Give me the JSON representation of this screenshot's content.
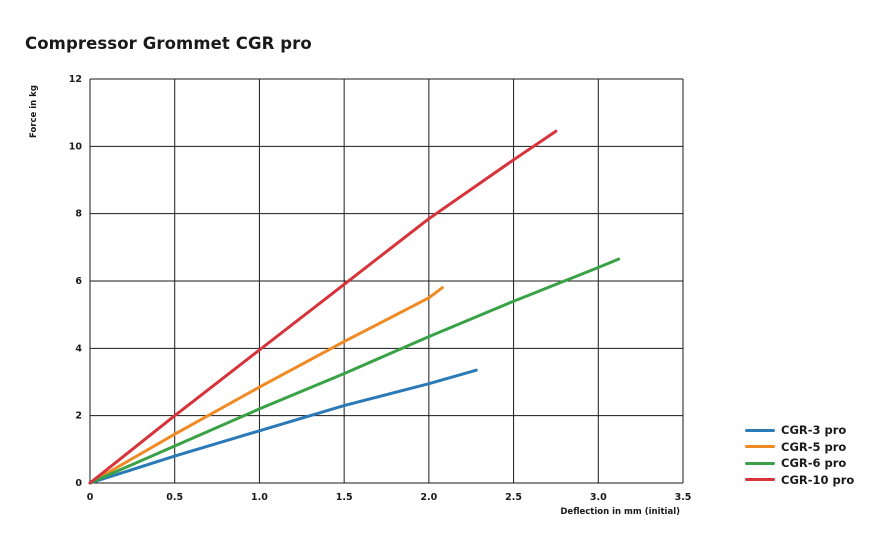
{
  "chart_data": {
    "type": "line",
    "title": "Compressor Grommet CGR pro",
    "xlabel": "Deflection in mm (initial)",
    "ylabel": "Force in kg",
    "xlim": [
      0,
      3.5
    ],
    "ylim": [
      0,
      12
    ],
    "grid": true,
    "legend_position": "bottom-right",
    "x_ticks": [
      "0",
      "0.5",
      "1.0",
      "1.5",
      "2.0",
      "2.5",
      "3.0",
      "3.5"
    ],
    "x_tick_values": [
      0,
      0.5,
      1.0,
      1.5,
      2.0,
      2.5,
      3.0,
      3.5
    ],
    "y_ticks": [
      "0",
      "2",
      "4",
      "6",
      "8",
      "10",
      "12"
    ],
    "y_tick_values": [
      0,
      2,
      4,
      6,
      8,
      10,
      12
    ],
    "series": [
      {
        "name": "CGR-3 pro",
        "color": "#2a7ab8",
        "x": [
          0,
          0.5,
          1.0,
          1.5,
          2.0,
          2.28
        ],
        "y": [
          0,
          0.8,
          1.55,
          2.3,
          2.95,
          3.35
        ]
      },
      {
        "name": "CGR-5 pro",
        "color": "#f08a24",
        "x": [
          0,
          0.5,
          1.0,
          1.5,
          2.0,
          2.08
        ],
        "y": [
          0,
          1.45,
          2.85,
          4.2,
          5.5,
          5.8
        ]
      },
      {
        "name": "CGR-6 pro",
        "color": "#3aa246",
        "x": [
          0,
          0.5,
          1.0,
          1.5,
          2.0,
          2.5,
          3.0,
          3.12
        ],
        "y": [
          0,
          1.1,
          2.2,
          3.25,
          4.35,
          5.4,
          6.4,
          6.65
        ]
      },
      {
        "name": "CGR-10 pro",
        "color": "#d8333a",
        "x": [
          0,
          0.5,
          1.0,
          1.5,
          2.0,
          2.5,
          2.75
        ],
        "y": [
          0,
          2.0,
          3.95,
          5.9,
          7.85,
          9.6,
          10.45
        ]
      }
    ]
  }
}
